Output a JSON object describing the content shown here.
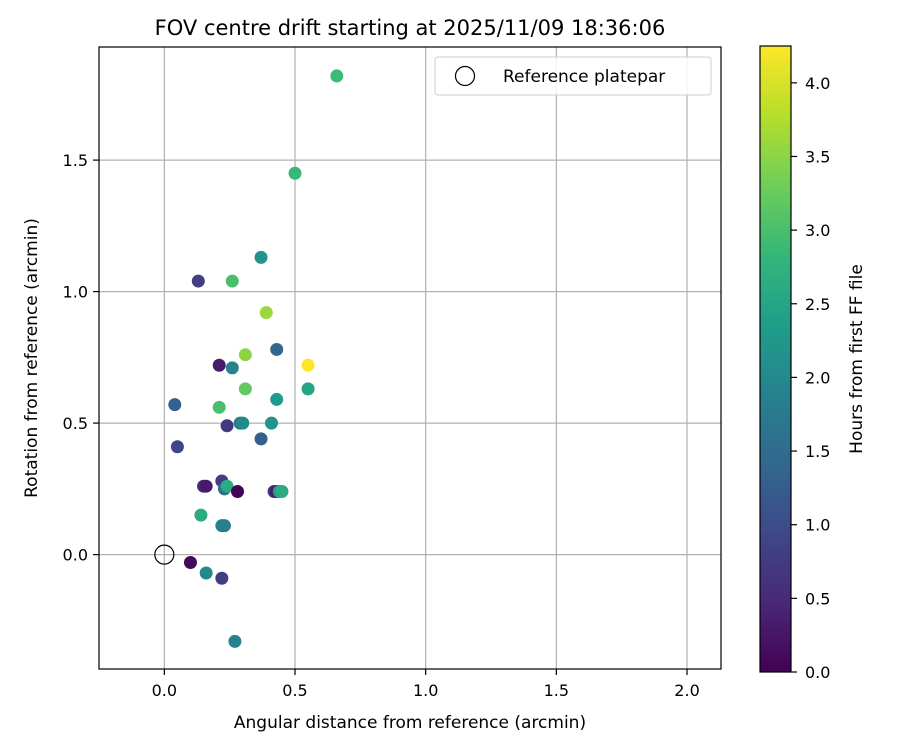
{
  "chart_data": {
    "type": "scatter",
    "title": "FOV centre drift starting at 2025/11/09 18:36:06",
    "xlabel": "Angular distance from reference (arcmin)",
    "ylabel": "Rotation from reference (arcmin)",
    "xlim": [
      -0.25,
      2.13
    ],
    "ylim": [
      -0.435,
      1.93
    ],
    "xticks": [
      0.0,
      0.5,
      1.0,
      1.5,
      2.0
    ],
    "xtick_labels": [
      "0.0",
      "0.5",
      "1.0",
      "1.5",
      "2.0"
    ],
    "yticks": [
      0.0,
      0.5,
      1.0,
      1.5
    ],
    "ytick_labels": [
      "0.0",
      "0.5",
      "1.0",
      "1.5"
    ],
    "grid": true,
    "legend": {
      "position": "upper right",
      "entries": [
        "Reference platepar"
      ]
    },
    "reference_point": {
      "x": 0.0,
      "y": 0.0,
      "label": "Reference platepar"
    },
    "colorbar": {
      "label": "Hours from first FF file",
      "min": 0.0,
      "max": 4.25,
      "ticks": [
        0.0,
        0.5,
        1.0,
        1.5,
        2.0,
        2.5,
        3.0,
        3.5,
        4.0
      ],
      "tick_labels": [
        "0.0",
        "0.5",
        "1.0",
        "1.5",
        "2.0",
        "2.5",
        "3.0",
        "3.5",
        "4.0"
      ],
      "colormap": "viridis",
      "colors": [
        "#440154",
        "#482878",
        "#3e4989",
        "#31688e",
        "#26828e",
        "#1f9e89",
        "#35b779",
        "#6ece58",
        "#b5de2b",
        "#fde725"
      ]
    },
    "points": [
      {
        "x": 0.66,
        "y": 1.82,
        "hours": 2.9
      },
      {
        "x": 0.5,
        "y": 1.45,
        "hours": 2.85
      },
      {
        "x": 0.37,
        "y": 1.13,
        "hours": 2.2
      },
      {
        "x": 0.13,
        "y": 1.04,
        "hours": 0.8
      },
      {
        "x": 0.26,
        "y": 1.04,
        "hours": 3.0
      },
      {
        "x": 0.39,
        "y": 0.92,
        "hours": 3.6
      },
      {
        "x": 0.43,
        "y": 0.78,
        "hours": 1.4
      },
      {
        "x": 0.31,
        "y": 0.76,
        "hours": 3.5
      },
      {
        "x": 0.21,
        "y": 0.72,
        "hours": 0.3
      },
      {
        "x": 0.26,
        "y": 0.71,
        "hours": 1.9
      },
      {
        "x": 0.55,
        "y": 0.72,
        "hours": 4.25
      },
      {
        "x": 0.31,
        "y": 0.63,
        "hours": 3.2
      },
      {
        "x": 0.55,
        "y": 0.63,
        "hours": 2.5
      },
      {
        "x": 0.04,
        "y": 0.57,
        "hours": 1.3
      },
      {
        "x": 0.43,
        "y": 0.59,
        "hours": 2.3
      },
      {
        "x": 0.21,
        "y": 0.56,
        "hours": 3.0
      },
      {
        "x": 0.24,
        "y": 0.49,
        "hours": 0.7
      },
      {
        "x": 0.29,
        "y": 0.5,
        "hours": 1.7
      },
      {
        "x": 0.3,
        "y": 0.5,
        "hours": 2.0
      },
      {
        "x": 0.41,
        "y": 0.5,
        "hours": 2.2
      },
      {
        "x": 0.05,
        "y": 0.41,
        "hours": 0.9
      },
      {
        "x": 0.37,
        "y": 0.44,
        "hours": 1.3
      },
      {
        "x": 0.22,
        "y": 0.28,
        "hours": 0.8
      },
      {
        "x": 0.15,
        "y": 0.26,
        "hours": 0.5
      },
      {
        "x": 0.16,
        "y": 0.26,
        "hours": 0.3
      },
      {
        "x": 0.23,
        "y": 0.25,
        "hours": 1.5
      },
      {
        "x": 0.24,
        "y": 0.26,
        "hours": 2.6
      },
      {
        "x": 0.28,
        "y": 0.24,
        "hours": 0.05
      },
      {
        "x": 0.42,
        "y": 0.24,
        "hours": 0.6
      },
      {
        "x": 0.43,
        "y": 0.24,
        "hours": 0.3
      },
      {
        "x": 0.44,
        "y": 0.24,
        "hours": 2.4
      },
      {
        "x": 0.45,
        "y": 0.24,
        "hours": 2.6
      },
      {
        "x": 0.14,
        "y": 0.15,
        "hours": 2.6
      },
      {
        "x": 0.22,
        "y": 0.11,
        "hours": 1.9
      },
      {
        "x": 0.23,
        "y": 0.11,
        "hours": 1.8
      },
      {
        "x": 0.1,
        "y": -0.03,
        "hours": 0.1
      },
      {
        "x": 0.16,
        "y": -0.07,
        "hours": 2.0
      },
      {
        "x": 0.22,
        "y": -0.09,
        "hours": 0.8
      },
      {
        "x": 0.27,
        "y": -0.33,
        "hours": 1.9
      }
    ]
  }
}
